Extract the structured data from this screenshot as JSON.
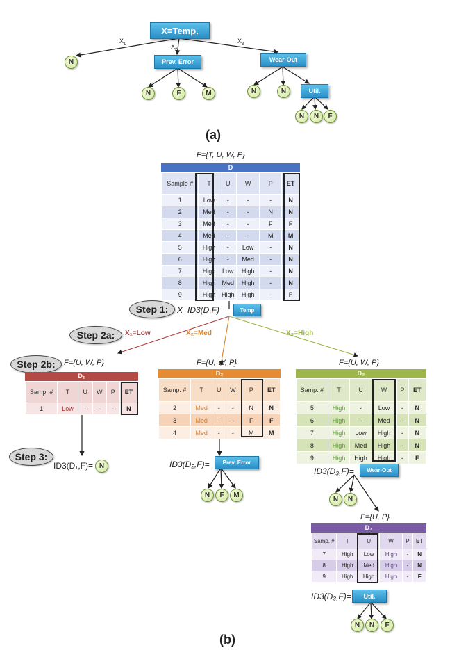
{
  "panel_a": {
    "caption": "(a)",
    "root": "X=Temp.",
    "edge_labels": [
      "X",
      "X",
      "X"
    ],
    "edge_subs": [
      "1",
      "2",
      "3"
    ],
    "prev_error": "Prev. Error",
    "wear_out": "Wear-Out",
    "util": "Util.",
    "leaves": [
      "N",
      "N",
      "F",
      "M",
      "N",
      "N",
      "N",
      "N",
      "F"
    ]
  },
  "panel_b": {
    "caption": "(b)",
    "f_full": "F={T, U, W, P}",
    "table_d": {
      "title": "D",
      "headers": [
        "Sample #",
        "T",
        "U",
        "W",
        "P",
        "ET"
      ],
      "rows": [
        [
          "1",
          "Low",
          "-",
          "-",
          "-",
          "N"
        ],
        [
          "2",
          "Med",
          "-",
          "-",
          "N",
          "N"
        ],
        [
          "3",
          "Med",
          "-",
          "-",
          "F",
          "F"
        ],
        [
          "4",
          "Med",
          "-",
          "-",
          "M",
          "M"
        ],
        [
          "5",
          "High",
          "-",
          "Low",
          "-",
          "N"
        ],
        [
          "6",
          "High",
          "-",
          "Med",
          "-",
          "N"
        ],
        [
          "7",
          "High",
          "Low",
          "High",
          "-",
          "N"
        ],
        [
          "8",
          "High",
          "Med",
          "High",
          "-",
          "N"
        ],
        [
          "9",
          "High",
          "High",
          "High",
          "-",
          "F"
        ]
      ]
    },
    "step1": "Step 1:",
    "step1_eq": "X=ID3(D,F)=",
    "step1_box": "Temp",
    "step2a": "Step 2a:",
    "step2b": "Step 2b:",
    "step3": "Step 3:",
    "branch_low": "X₁=Low",
    "branch_med": "X₂=Med",
    "branch_high": "X₃=High",
    "f_sub": "F={U, W, P}",
    "table_d1": {
      "title": "D₁",
      "headers": [
        "Samp. #",
        "T",
        "U",
        "W",
        "P",
        "ET"
      ],
      "rows": [
        [
          "1",
          "Low",
          "-",
          "-",
          "-",
          "N"
        ]
      ]
    },
    "table_d2": {
      "title": "D₂",
      "headers": [
        "Samp. #",
        "T",
        "U",
        "W",
        "P",
        "ET"
      ],
      "rows": [
        [
          "2",
          "Med",
          "-",
          "-",
          "N",
          "N"
        ],
        [
          "3",
          "Med",
          "-",
          "-",
          "F",
          "F"
        ],
        [
          "4",
          "Med",
          "-",
          "-",
          "M",
          "M"
        ]
      ]
    },
    "table_d3": {
      "title": "D₃",
      "headers": [
        "Samp. #",
        "T",
        "U",
        "W",
        "P",
        "ET"
      ],
      "rows": [
        [
          "5",
          "High",
          "-",
          "Low",
          "-",
          "N"
        ],
        [
          "6",
          "High",
          "-",
          "Med",
          "-",
          "N"
        ],
        [
          "7",
          "High",
          "Low",
          "High",
          "-",
          "N"
        ],
        [
          "8",
          "High",
          "Med",
          "High",
          "-",
          "N"
        ],
        [
          "9",
          "High",
          "High",
          "High",
          "-",
          "F"
        ]
      ]
    },
    "table_d3b": {
      "title": "D₃",
      "headers": [
        "Samp. #",
        "T",
        "U",
        "W",
        "P",
        "ET"
      ],
      "rows": [
        [
          "7",
          "High",
          "Low",
          "High",
          "-",
          "N"
        ],
        [
          "8",
          "High",
          "Med",
          "High",
          "-",
          "N"
        ],
        [
          "9",
          "High",
          "High",
          "High",
          "-",
          "F"
        ]
      ]
    },
    "f_up": "F={U, P}",
    "eq_d1": "ID3(D₁,F)=",
    "eq_d2": "ID3(D₂,F)=",
    "eq_d3": "ID3(D₃,F)=",
    "eq_d3b": "ID3(D₃,F)=",
    "box_prev_error": "Prev. Error",
    "box_wear_out": "Wear-Out",
    "box_util": "Util.",
    "leaf_d1": "N",
    "leaves_d2": [
      "N",
      "F",
      "M"
    ],
    "leaves_d3": [
      "N",
      "N"
    ],
    "leaves_d3b": [
      "N",
      "N",
      "F"
    ]
  }
}
